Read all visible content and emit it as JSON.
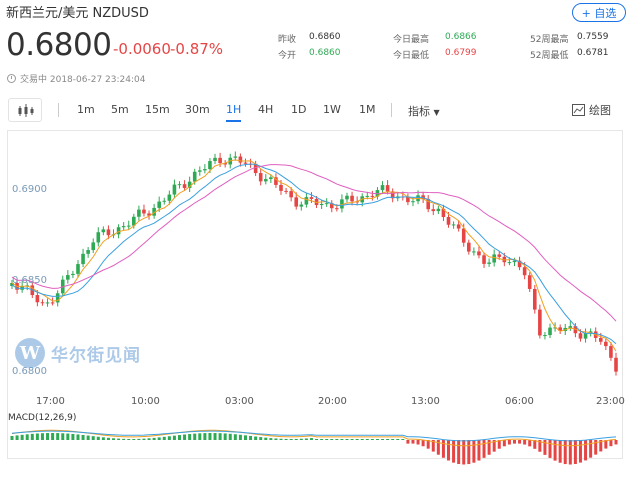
{
  "header": {
    "title": "新西兰元/美元  NZDUSD",
    "follow_label": "+ 自选",
    "price": "0.6800",
    "change": "-0.0060",
    "change_pct": "-0.87%",
    "stats": [
      {
        "label": "昨收",
        "value": "0.6860",
        "color": "dark"
      },
      {
        "label": "今开",
        "value": "0.6860",
        "color": "green"
      },
      {
        "label": "今日最高",
        "value": "0.6866",
        "color": "green"
      },
      {
        "label": "今日最低",
        "value": "0.6799",
        "color": "red"
      },
      {
        "label": "52周最高",
        "value": "0.7559",
        "color": "dark"
      },
      {
        "label": "52周最低",
        "value": "0.6781",
        "color": "dark"
      }
    ],
    "status": "交易中 2018-06-27 23:24:04"
  },
  "toolbar": {
    "tabs": [
      "1m",
      "5m",
      "15m",
      "30m",
      "1H",
      "4H",
      "1D",
      "1W",
      "1M"
    ],
    "active_tab": "1H",
    "indicator_label": "指标",
    "draw_label": "绘图"
  },
  "watermark": {
    "logo_letter": "W",
    "text": "华尔街见闻"
  },
  "chart_data": {
    "type": "candlestick",
    "y_ticks": [
      "0.6900",
      "0.6850",
      "0.6800"
    ],
    "x_ticks": [
      "17:00",
      "10:00",
      "03:00",
      "20:00",
      "13:00",
      "06:00",
      "23:00"
    ],
    "macd_label": "MACD(12,26,9)",
    "colors": {
      "up": "#2eaa55",
      "down": "#e64545",
      "ma_fast": "#f0a020",
      "ma_mid": "#3aa0e0",
      "ma_slow": "#e060c0"
    }
  }
}
